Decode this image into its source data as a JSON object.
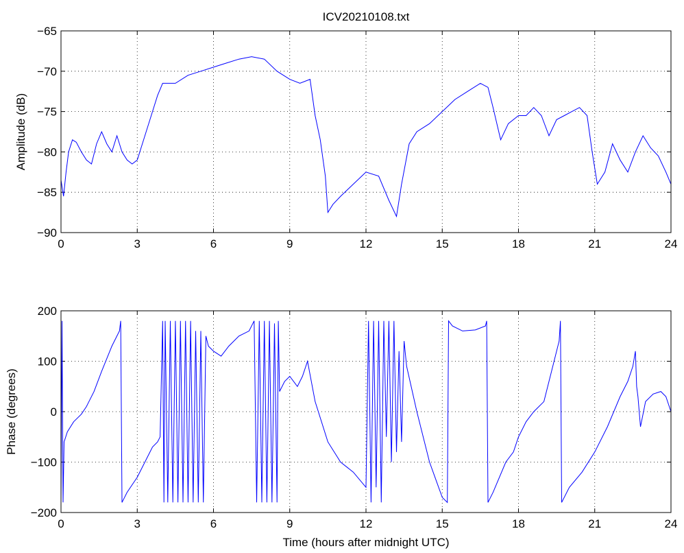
{
  "chart_data": [
    {
      "type": "line",
      "title": "ICV20210108.txt",
      "xlabel": "",
      "ylabel": "Amplitude (dB)",
      "xlim": [
        0,
        24
      ],
      "ylim": [
        -90,
        -65
      ],
      "xticks": [
        0,
        3,
        6,
        9,
        12,
        15,
        18,
        21,
        24
      ],
      "yticks": [
        -90,
        -85,
        -80,
        -75,
        -70,
        -65
      ],
      "xtick_labels": [
        "0",
        "3",
        "6",
        "9",
        "12",
        "15",
        "18",
        "21",
        "24"
      ],
      "ytick_labels": [
        "−90",
        "−85",
        "−80",
        "−75",
        "−70",
        "−65"
      ],
      "grid": true,
      "line_color": "#0000ff",
      "series": [
        {
          "x": [
            0.0,
            0.1,
            0.2,
            0.3,
            0.45,
            0.6,
            0.8,
            1.0,
            1.2,
            1.4,
            1.6,
            1.8,
            2.0,
            2.2,
            2.4,
            2.6,
            2.8,
            3.0,
            3.2,
            3.4,
            3.6,
            3.8,
            4.0,
            4.5,
            5.0,
            5.5,
            6.0,
            6.5,
            7.0,
            7.5,
            8.0,
            8.5,
            9.0,
            9.4,
            9.8,
            10.0,
            10.2,
            10.4,
            10.5,
            10.7,
            11.0,
            11.5,
            12.0,
            12.5,
            12.9,
            13.2,
            13.4,
            13.7,
            14.0,
            14.5,
            15.0,
            15.5,
            16.0,
            16.5,
            16.8,
            17.0,
            17.3,
            17.6,
            18.0,
            18.3,
            18.6,
            18.9,
            19.2,
            19.5,
            19.8,
            20.1,
            20.4,
            20.7,
            20.9,
            21.1,
            21.4,
            21.7,
            22.0,
            22.3,
            22.6,
            22.9,
            23.2,
            23.5,
            23.8,
            24.0
          ],
          "y": [
            -83.5,
            -85.5,
            -82.5,
            -80.0,
            -78.5,
            -78.8,
            -80.0,
            -81.0,
            -81.5,
            -79.0,
            -77.5,
            -79.0,
            -80.0,
            -78.0,
            -80.0,
            -81.0,
            -81.5,
            -81.0,
            -79.0,
            -77.0,
            -75.0,
            -73.0,
            -71.5,
            -71.5,
            -70.5,
            -70.0,
            -69.5,
            -69.0,
            -68.5,
            -68.2,
            -68.5,
            -70.0,
            -71.0,
            -71.5,
            -71.0,
            -75.5,
            -78.5,
            -83.0,
            -87.5,
            -86.5,
            -85.5,
            -84.0,
            -82.5,
            -83.0,
            -86.0,
            -88.0,
            -84.0,
            -79.0,
            -77.5,
            -76.5,
            -75.0,
            -73.5,
            -72.5,
            -71.5,
            -72.0,
            -74.5,
            -78.5,
            -76.5,
            -75.5,
            -75.5,
            -74.5,
            -75.5,
            -78.0,
            -76.0,
            -75.5,
            -75.0,
            -74.5,
            -75.5,
            -80.0,
            -84.0,
            -82.5,
            -79.0,
            -81.0,
            -82.5,
            -80.0,
            -78.0,
            -79.5,
            -80.5,
            -82.5,
            -84.0
          ]
        }
      ]
    },
    {
      "type": "line",
      "title": "",
      "xlabel": "Time (hours after midnight UTC)",
      "ylabel": "Phase (degrees)",
      "xlim": [
        0,
        24
      ],
      "ylim": [
        -200,
        200
      ],
      "xticks": [
        0,
        3,
        6,
        9,
        12,
        15,
        18,
        21,
        24
      ],
      "yticks": [
        -200,
        -100,
        0,
        100,
        200
      ],
      "xtick_labels": [
        "0",
        "3",
        "6",
        "9",
        "12",
        "15",
        "18",
        "21",
        "24"
      ],
      "ytick_labels": [
        "−200",
        "−100",
        "0",
        "100",
        "200"
      ],
      "grid": true,
      "line_color": "#0000ff",
      "series": [
        {
          "x": [
            0.0,
            0.04,
            0.08,
            0.12,
            0.25,
            0.5,
            0.8,
            1.0,
            1.3,
            1.6,
            2.0,
            2.3,
            2.35,
            2.4,
            2.6,
            3.0,
            3.3,
            3.6,
            3.8,
            3.9,
            4.0,
            4.05,
            4.1,
            4.15,
            4.2,
            4.3,
            4.4,
            4.5,
            4.6,
            4.7,
            4.8,
            4.9,
            5.0,
            5.1,
            5.2,
            5.3,
            5.4,
            5.5,
            5.6,
            5.7,
            5.8,
            6.0,
            6.3,
            6.6,
            7.0,
            7.4,
            7.6,
            7.7,
            7.8,
            7.9,
            8.0,
            8.1,
            8.2,
            8.3,
            8.4,
            8.5,
            8.55,
            8.6,
            8.8,
            9.0,
            9.3,
            9.5,
            9.7,
            10.0,
            10.5,
            11.0,
            11.5,
            12.0,
            12.1,
            12.2,
            12.3,
            12.4,
            12.5,
            12.6,
            12.7,
            12.8,
            12.9,
            13.0,
            13.1,
            13.2,
            13.3,
            13.4,
            13.5,
            13.6,
            14.0,
            14.5,
            15.0,
            15.2,
            15.25,
            15.4,
            15.8,
            16.3,
            16.7,
            16.75,
            16.8,
            17.0,
            17.5,
            17.8,
            18.0,
            18.3,
            18.6,
            19.0,
            19.3,
            19.6,
            19.65,
            19.7,
            20.0,
            20.5,
            21.0,
            21.5,
            22.0,
            22.3,
            22.5,
            22.6,
            22.65,
            22.7,
            22.8,
            23.0,
            23.3,
            23.6,
            23.8,
            24.0
          ],
          "y": [
            -180,
            180,
            -180,
            -60,
            -40,
            -20,
            -5,
            10,
            40,
            80,
            130,
            160,
            180,
            -180,
            -160,
            -130,
            -100,
            -70,
            -60,
            -50,
            180,
            -180,
            180,
            0,
            -180,
            180,
            -180,
            180,
            -180,
            180,
            -180,
            180,
            -180,
            180,
            -180,
            160,
            -180,
            160,
            -180,
            150,
            130,
            120,
            110,
            130,
            150,
            160,
            180,
            -180,
            180,
            -180,
            180,
            -180,
            180,
            -180,
            175,
            -180,
            180,
            40,
            60,
            70,
            50,
            70,
            100,
            20,
            -60,
            -100,
            -120,
            -150,
            180,
            -180,
            180,
            -150,
            180,
            -180,
            180,
            -50,
            180,
            -100,
            180,
            -80,
            120,
            -60,
            140,
            90,
            0,
            -100,
            -170,
            -180,
            180,
            170,
            160,
            162,
            170,
            180,
            -180,
            -160,
            -100,
            -80,
            -50,
            -20,
            0,
            20,
            80,
            140,
            180,
            -180,
            -150,
            -120,
            -80,
            -30,
            30,
            60,
            90,
            120,
            50,
            30,
            -30,
            20,
            35,
            40,
            30,
            0
          ]
        }
      ]
    }
  ]
}
